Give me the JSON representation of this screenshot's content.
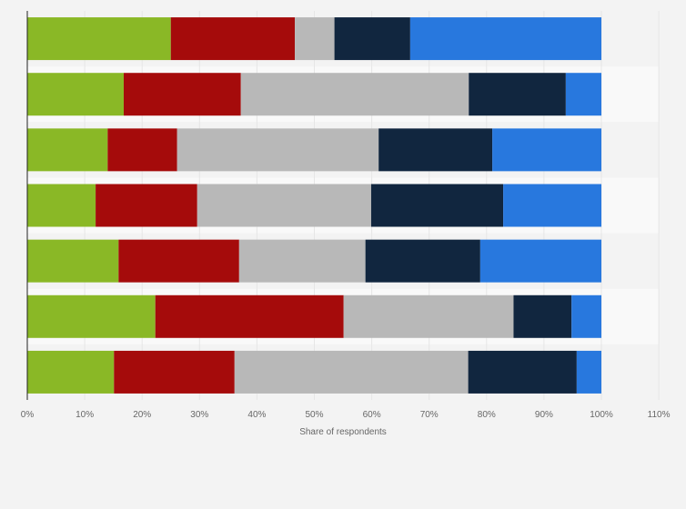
{
  "chart_data": {
    "type": "bar",
    "orientation": "horizontal",
    "stacked": true,
    "title": "",
    "xlabel": "Share of respondents",
    "ylabel": "",
    "xlim": [
      0,
      110
    ],
    "x_ticks": [
      "0%",
      "10%",
      "20%",
      "30%",
      "40%",
      "50%",
      "60%",
      "70%",
      "80%",
      "90%",
      "100%",
      "110%"
    ],
    "grid": true,
    "legend": "none",
    "categories": [
      "",
      "",
      "",
      "",
      "",
      "",
      ""
    ],
    "series": [
      {
        "color": "#8ab826",
        "values": [
          25.0,
          16.8,
          14.0,
          11.9,
          15.9,
          22.3,
          15.1
        ]
      },
      {
        "color": "#a50b0b",
        "values": [
          21.6,
          20.4,
          12.1,
          17.7,
          21.0,
          32.8,
          21.0
        ]
      },
      {
        "color": "#b8b8b8",
        "values": [
          6.9,
          39.7,
          35.1,
          30.3,
          22.0,
          29.6,
          40.7
        ]
      },
      {
        "color": "#11263f",
        "values": [
          13.2,
          16.9,
          19.8,
          23.0,
          20.0,
          10.1,
          18.9
        ]
      },
      {
        "color": "#2878de",
        "values": [
          33.3,
          6.2,
          19.0,
          17.1,
          21.1,
          5.2,
          4.3
        ]
      }
    ]
  },
  "axis": {
    "x_title": "Share of respondents"
  }
}
